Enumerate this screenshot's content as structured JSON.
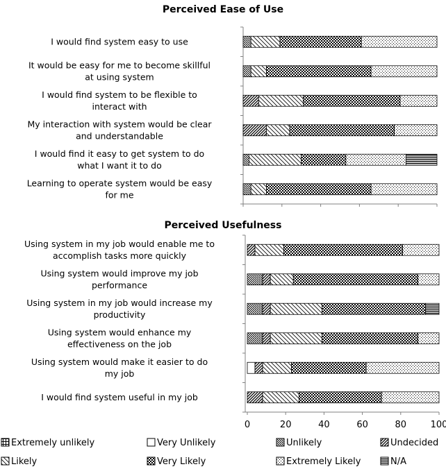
{
  "chart_data": [
    {
      "type": "bar",
      "orientation": "horizontal",
      "stacked": true,
      "title": "Perceived Ease of Use",
      "categories": [
        [
          "I would find system easy to use"
        ],
        [
          "It would be easy for me to become skillful",
          "at using system"
        ],
        [
          "I would find system to be flexible to",
          "interact with"
        ],
        [
          "My interaction with system would be clear",
          "and understandable"
        ],
        [
          "I would find it easy to get system to do",
          "what I want it to do"
        ],
        [
          "Learning to operate system would be easy",
          "for me"
        ]
      ],
      "series": [
        {
          "name": "Extremely unlikely",
          "values": [
            0,
            0,
            0,
            0,
            0,
            0
          ]
        },
        {
          "name": "Very Unlikely",
          "values": [
            0,
            0,
            0,
            0,
            0,
            0
          ]
        },
        {
          "name": "Unlikely",
          "values": [
            4,
            4,
            0,
            0,
            3,
            4
          ]
        },
        {
          "name": "Undecided",
          "values": [
            0,
            0,
            8,
            12,
            0,
            0
          ]
        },
        {
          "name": "Likely",
          "values": [
            15,
            8,
            23,
            12,
            27,
            8
          ]
        },
        {
          "name": "Very Likely",
          "values": [
            42,
            54,
            50,
            54,
            23,
            54
          ]
        },
        {
          "name": "Extremely Likely",
          "values": [
            39,
            34,
            19,
            22,
            31,
            34
          ]
        },
        {
          "name": "N/A",
          "values": [
            0,
            0,
            0,
            0,
            16,
            0
          ]
        }
      ],
      "xlim": [
        0,
        100
      ]
    },
    {
      "type": "bar",
      "orientation": "horizontal",
      "stacked": true,
      "title": "Perceived Usefulness",
      "categories": [
        [
          "Using system in my job would enable me to",
          "accomplish tasks more quickly"
        ],
        [
          "Using system would improve my job",
          "performance"
        ],
        [
          "Using system in my job would increase my",
          "productivity"
        ],
        [
          "Using system would enhance my",
          "effectiveness on the job"
        ],
        [
          "Using system would make it easier to do",
          "my job"
        ],
        [
          "I would find system useful in my job"
        ]
      ],
      "series": [
        {
          "name": "Extremely unlikely",
          "values": [
            0,
            0,
            0,
            0,
            0,
            0
          ]
        },
        {
          "name": "Very Unlikely",
          "values": [
            0,
            0,
            0,
            0,
            4,
            0
          ]
        },
        {
          "name": "Unlikely",
          "values": [
            0,
            8,
            8,
            8,
            0,
            0
          ]
        },
        {
          "name": "Undecided",
          "values": [
            4,
            4,
            4,
            4,
            4,
            8
          ]
        },
        {
          "name": "Likely",
          "values": [
            15,
            12,
            27,
            27,
            15,
            19
          ]
        },
        {
          "name": "Very Likely",
          "values": [
            62,
            65,
            54,
            50,
            39,
            43
          ]
        },
        {
          "name": "Extremely Likely",
          "values": [
            19,
            11,
            0,
            11,
            38,
            30
          ]
        },
        {
          "name": "N/A",
          "values": [
            0,
            0,
            7,
            0,
            0,
            0
          ]
        }
      ],
      "xlim": [
        0,
        100
      ],
      "xticks": [
        0,
        20,
        40,
        60,
        80,
        100
      ]
    }
  ],
  "legend": {
    "placement": "bottom",
    "items": [
      {
        "name": "Extremely unlikely",
        "pattern": "grid"
      },
      {
        "name": "Very Unlikely",
        "pattern": "empty"
      },
      {
        "name": "Unlikely",
        "pattern": "diag-dense-down"
      },
      {
        "name": "Undecided",
        "pattern": "diag-wide-up"
      },
      {
        "name": "Likely",
        "pattern": "diag-wide-down"
      },
      {
        "name": "Very Likely",
        "pattern": "checker"
      },
      {
        "name": "Extremely Likely",
        "pattern": "dots"
      },
      {
        "name": "N/A",
        "pattern": "horizontal-lines"
      }
    ]
  }
}
